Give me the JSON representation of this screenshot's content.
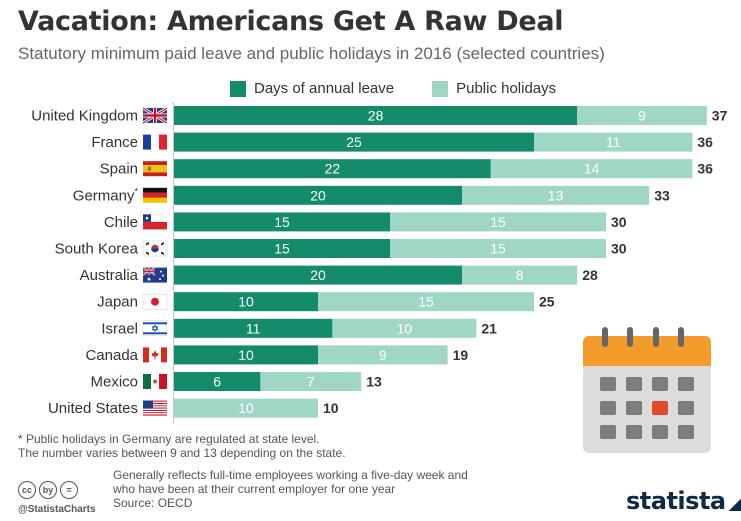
{
  "header": {
    "title": "Vacation: Americans Get A Raw Deal",
    "subtitle": "Statutory minimum paid leave and public holidays in 2016 (selected countries)"
  },
  "legend": {
    "leave_label": "Days of annual leave",
    "holidays_label": "Public holidays"
  },
  "colors": {
    "leave": "#148c6b",
    "holidays": "#a0d6c6",
    "calendar_top": "#f39c2b",
    "calendar_body": "#dcdcdc",
    "calendar_cell": "#7d7d7d",
    "calendar_highlight": "#e2492b"
  },
  "chart_data": {
    "type": "bar",
    "orientation": "horizontal",
    "stacked": true,
    "categories": [
      "United Kingdom",
      "France",
      "Spain",
      "Germany",
      "Chile",
      "South Korea",
      "Australia",
      "Japan",
      "Israel",
      "Canada",
      "Mexico",
      "United States"
    ],
    "category_suffix": [
      "",
      "",
      "",
      "*",
      "",
      "",
      "",
      "",
      "",
      "",
      "",
      ""
    ],
    "flags": [
      "uk-flag",
      "france-flag",
      "spain-flag",
      "germany-flag",
      "chile-flag",
      "south-korea-flag",
      "australia-flag",
      "japan-flag",
      "israel-flag",
      "canada-flag",
      "mexico-flag",
      "united-states-flag"
    ],
    "series": [
      {
        "name": "Days of annual leave",
        "values": [
          28,
          25,
          22,
          20,
          15,
          15,
          20,
          10,
          11,
          10,
          6,
          0
        ]
      },
      {
        "name": "Public holidays",
        "values": [
          9,
          11,
          14,
          13,
          15,
          15,
          8,
          15,
          10,
          9,
          7,
          10
        ]
      }
    ],
    "totals": [
      37,
      36,
      36,
      33,
      30,
      30,
      28,
      25,
      21,
      19,
      13,
      10
    ],
    "xlim": [
      0,
      37
    ],
    "grid": false,
    "legend_position": "top"
  },
  "footer": {
    "footnote": "* Public holidays in Germany are regulated at state level.\n   The number varies between 9 and 13 depending on the state.",
    "note_line1": "Generally reflects full-time employees working a five-day week and",
    "note_line2": "who have been at their current employer for one year",
    "source": "Source: OECD",
    "handle": "@StatistaCharts",
    "logo": "statista",
    "cc_icons": [
      "cc",
      "by",
      "="
    ]
  }
}
